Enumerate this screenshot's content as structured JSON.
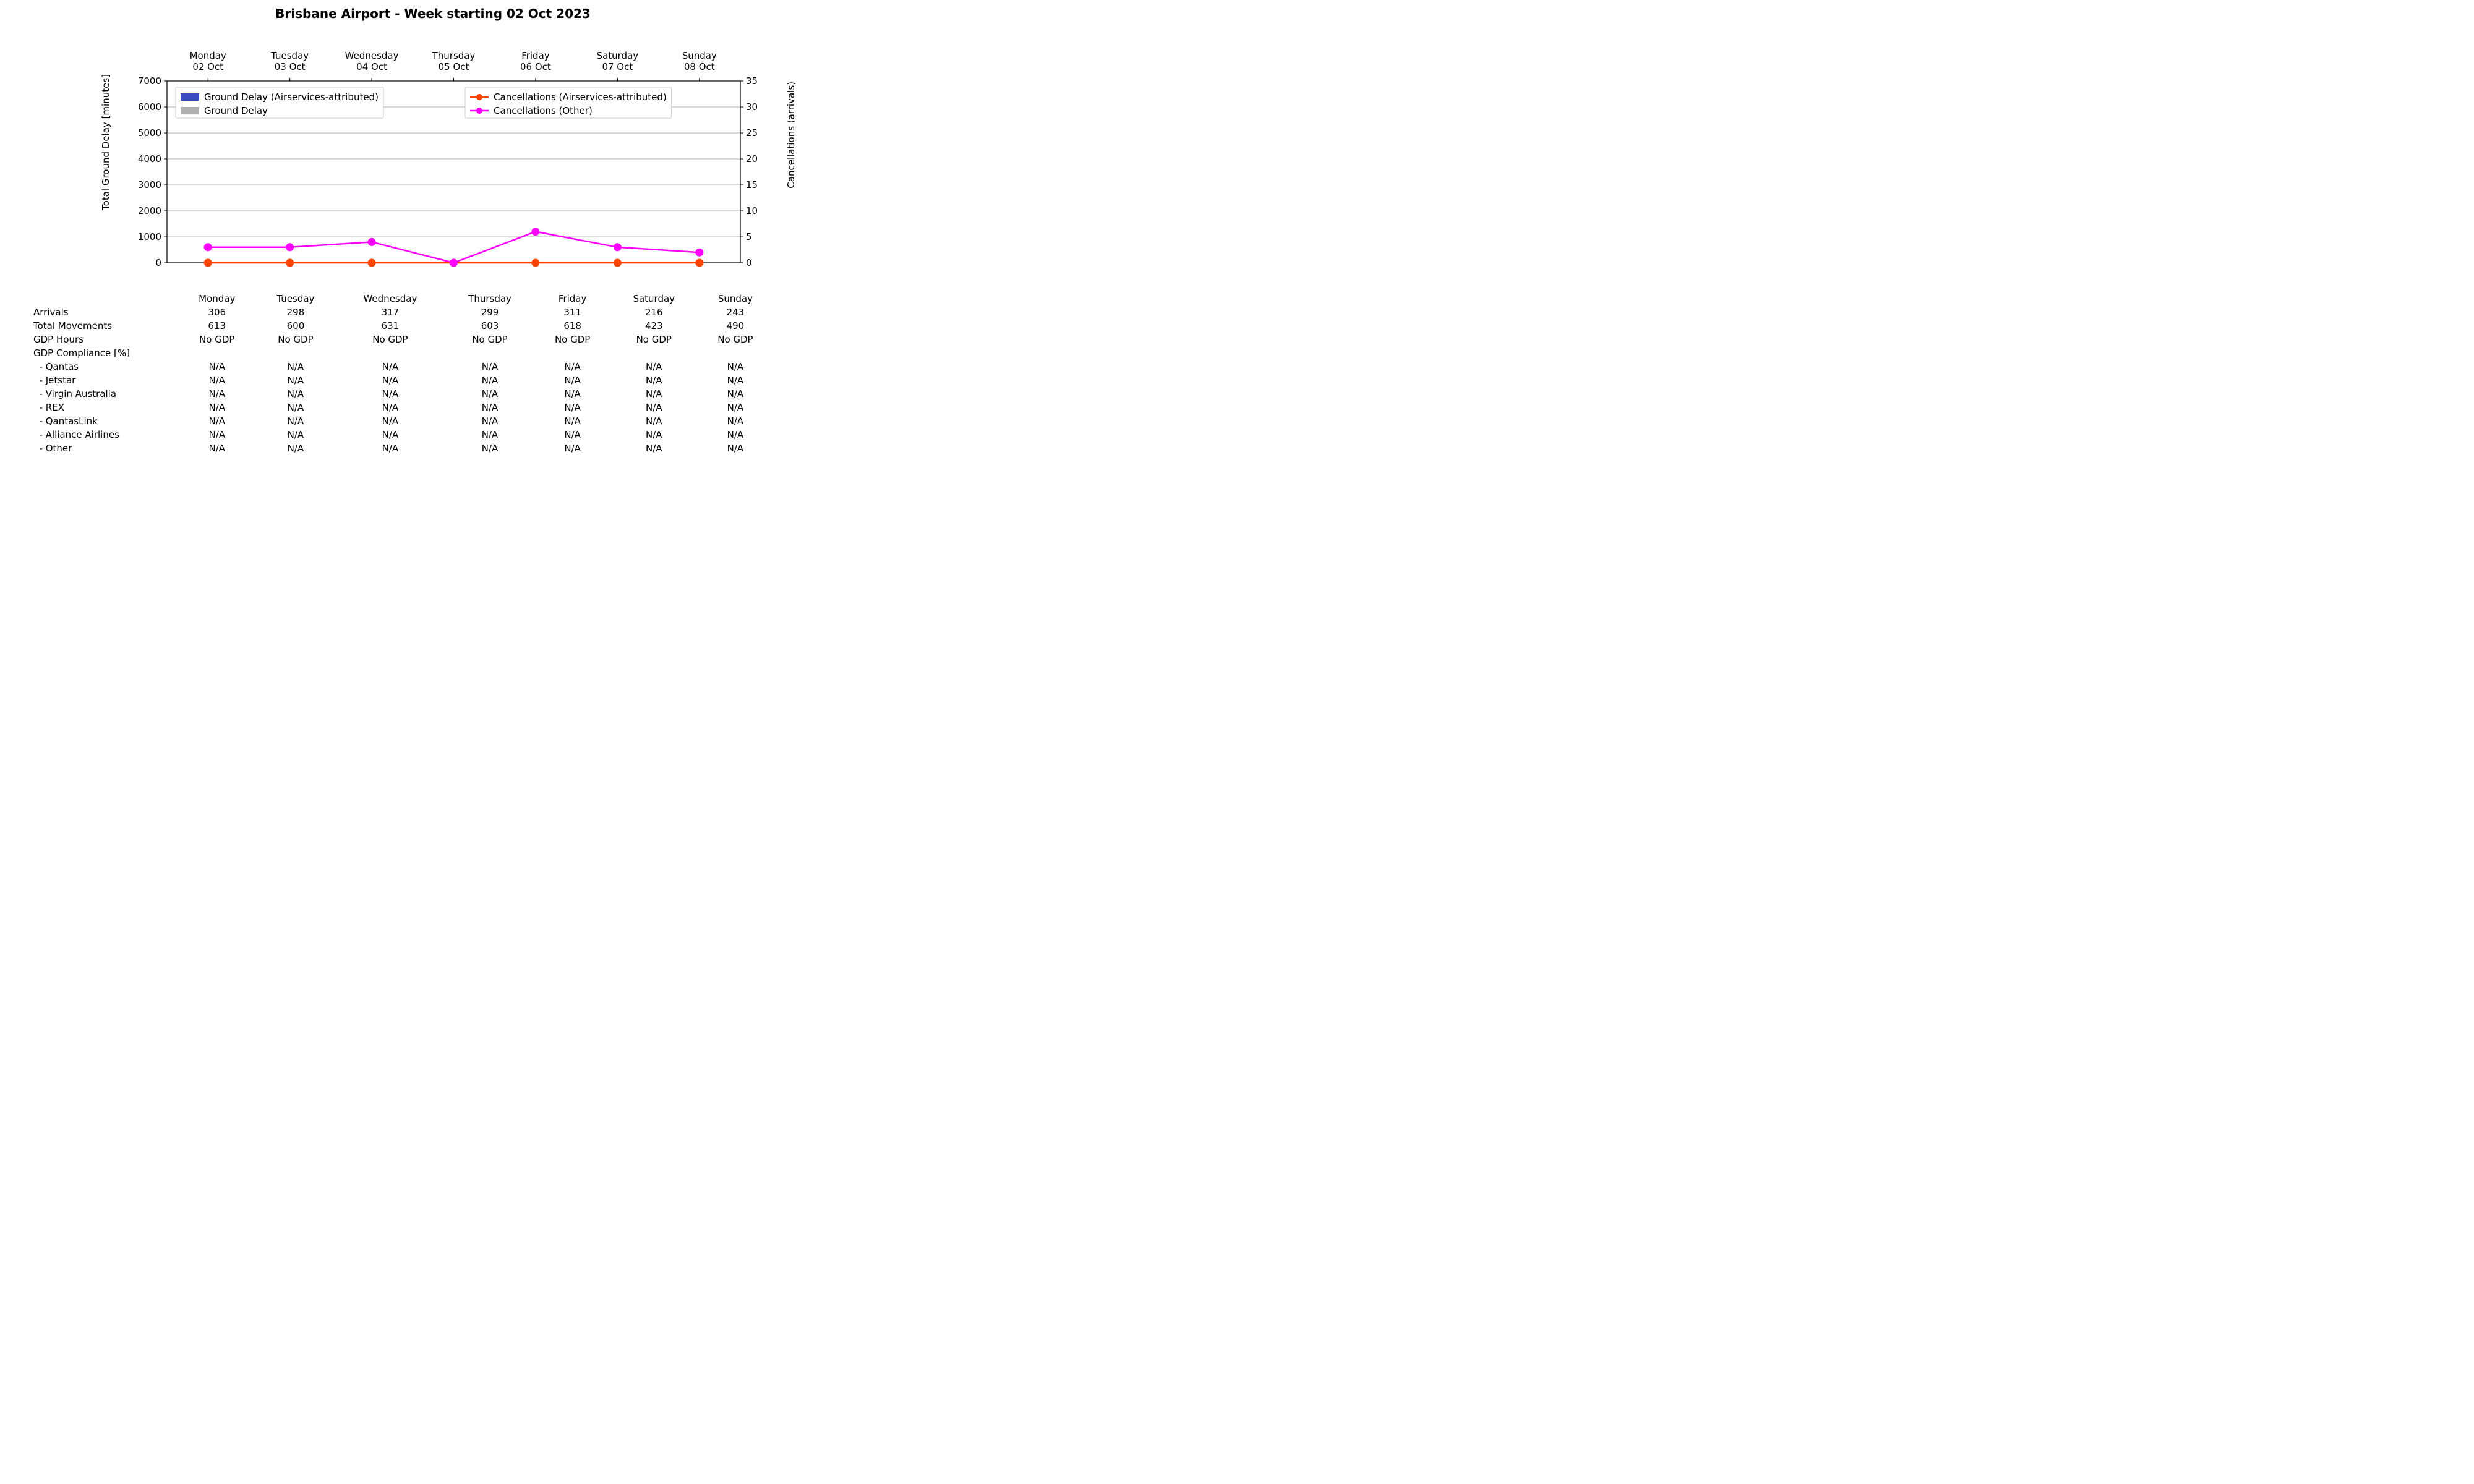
{
  "title": "Brisbane Airport - Week starting 02 Oct 2023",
  "chart": {
    "type": "bar+line",
    "background_color": "#ffffff",
    "axis_color": "#000000",
    "grid_color": "#b0b0b0",
    "days_top_line1": [
      "Monday",
      "Tuesday",
      "Wednesday",
      "Thursday",
      "Friday",
      "Saturday",
      "Sunday"
    ],
    "days_top_line2": [
      "02 Oct",
      "03 Oct",
      "04 Oct",
      "05 Oct",
      "06 Oct",
      "07 Oct",
      "08 Oct"
    ],
    "x_positions": [
      0,
      1,
      2,
      3,
      4,
      5,
      6
    ],
    "y_left": {
      "label": "Total Ground Delay [minutes]",
      "lim": [
        0,
        7000
      ],
      "ticks": [
        0,
        1000,
        2000,
        3000,
        4000,
        5000,
        6000,
        7000
      ],
      "label_fontsize": 15,
      "tick_fontsize": 15
    },
    "y_right": {
      "label": "Cancellations (arrivals)",
      "lim": [
        0,
        35
      ],
      "ticks": [
        0,
        5,
        10,
        15,
        20,
        25,
        30,
        35
      ],
      "label_fontsize": 15,
      "tick_fontsize": 15
    },
    "series": {
      "ground_delay_airservices": {
        "type": "bar",
        "color": "#3b4cc0",
        "values": [
          0,
          0,
          0,
          0,
          0,
          0,
          0
        ],
        "legend": "Ground Delay (Airservices-attributed)"
      },
      "ground_delay": {
        "type": "bar",
        "color": "#b0b0b0",
        "values": [
          0,
          0,
          0,
          0,
          0,
          0,
          0
        ],
        "legend": "Ground Delay"
      },
      "cancellations_airservices": {
        "type": "line",
        "color": "#ff4500",
        "marker": "circle",
        "marker_size": 6,
        "line_width": 2.5,
        "values": [
          0,
          0,
          0,
          0,
          0,
          0,
          0
        ],
        "legend": "Cancellations (Airservices-attributed)"
      },
      "cancellations_other": {
        "type": "line",
        "color": "#ff00ff",
        "marker": "circle",
        "marker_size": 6,
        "line_width": 2.5,
        "values": [
          3,
          3,
          4,
          0,
          6,
          3,
          2
        ],
        "legend": "Cancellations (Other)"
      }
    },
    "legend": {
      "box_border": "#cccccc",
      "box_bg": "#ffffff",
      "font_size": 15
    }
  },
  "table": {
    "header": [
      "Monday",
      "Tuesday",
      "Wednesday",
      "Thursday",
      "Friday",
      "Saturday",
      "Sunday"
    ],
    "rows": [
      {
        "label": "Arrivals",
        "values": [
          "306",
          "298",
          "317",
          "299",
          "311",
          "216",
          "243"
        ]
      },
      {
        "label": "Total Movements",
        "values": [
          "613",
          "600",
          "631",
          "603",
          "618",
          "423",
          "490"
        ]
      },
      {
        "label": "GDP Hours",
        "values": [
          "No GDP",
          "No GDP",
          "No GDP",
          "No GDP",
          "No GDP",
          "No GDP",
          "No GDP"
        ]
      },
      {
        "label": "GDP Compliance [%]",
        "values": [
          "",
          "",
          "",
          "",
          "",
          "",
          ""
        ]
      },
      {
        "label": "  - Qantas",
        "values": [
          "N/A",
          "N/A",
          "N/A",
          "N/A",
          "N/A",
          "N/A",
          "N/A"
        ]
      },
      {
        "label": "  - Jetstar",
        "values": [
          "N/A",
          "N/A",
          "N/A",
          "N/A",
          "N/A",
          "N/A",
          "N/A"
        ]
      },
      {
        "label": "  - Virgin Australia",
        "values": [
          "N/A",
          "N/A",
          "N/A",
          "N/A",
          "N/A",
          "N/A",
          "N/A"
        ]
      },
      {
        "label": "  - REX",
        "values": [
          "N/A",
          "N/A",
          "N/A",
          "N/A",
          "N/A",
          "N/A",
          "N/A"
        ]
      },
      {
        "label": "  - QantasLink",
        "values": [
          "N/A",
          "N/A",
          "N/A",
          "N/A",
          "N/A",
          "N/A",
          "N/A"
        ]
      },
      {
        "label": "  - Alliance Airlines",
        "values": [
          "N/A",
          "N/A",
          "N/A",
          "N/A",
          "N/A",
          "N/A",
          "N/A"
        ]
      },
      {
        "label": "  - Other",
        "values": [
          "N/A",
          "N/A",
          "N/A",
          "N/A",
          "N/A",
          "N/A",
          "N/A"
        ]
      }
    ],
    "font_size": 15
  }
}
